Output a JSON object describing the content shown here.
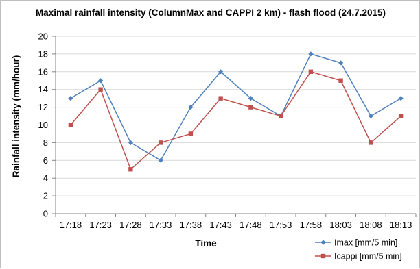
{
  "chart_data": {
    "type": "line",
    "title": "Maximal rainfall intensity (ColumnMax and CAPPI 2 km) - flash flood (24.7.2015)",
    "xlabel": "Time",
    "ylabel": "Rainfall intensity (mm/hour)",
    "categories": [
      "17:18",
      "17:23",
      "17:28",
      "17:33",
      "17:38",
      "17:43",
      "17:48",
      "17:53",
      "17:58",
      "18:03",
      "18:08",
      "18:13"
    ],
    "yticks": [
      "0",
      "2",
      "4",
      "6",
      "8",
      "10",
      "12",
      "14",
      "16",
      "18",
      "20"
    ],
    "ylim": [
      0,
      20
    ],
    "grid": true,
    "legend_position": "bottom-right",
    "series": [
      {
        "name": "Imax [mm/5 min]",
        "values": [
          13,
          15,
          8,
          6,
          12,
          16,
          13,
          11,
          18,
          17,
          11,
          13
        ],
        "color": "#4f81bd",
        "marker": "diamond"
      },
      {
        "name": "Icappi [mm/5 min]",
        "values": [
          10,
          14,
          5,
          8,
          9,
          13,
          12,
          11,
          16,
          15,
          8,
          11
        ],
        "color": "#c0504d",
        "marker": "square"
      }
    ]
  }
}
